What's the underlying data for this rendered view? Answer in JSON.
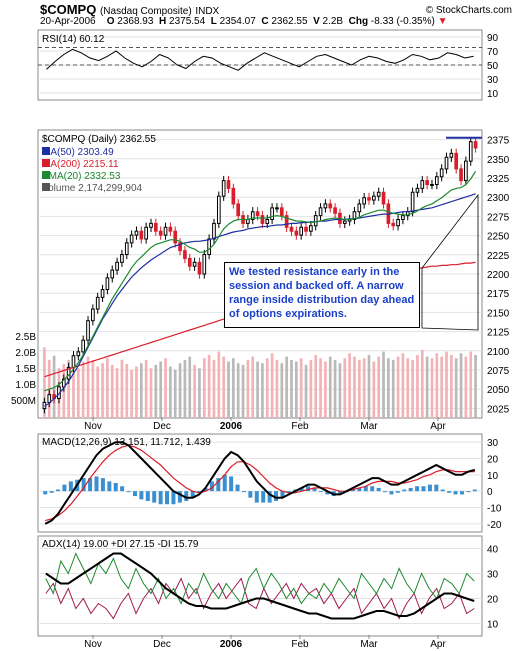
{
  "header": {
    "symbol": "$COMPQ",
    "name": "(Nasdaq Composite)",
    "exchange": "INDX",
    "date": "20-Apr-2006",
    "open_label": "O",
    "open": "2368.93",
    "high_label": "H",
    "high": "2375.54",
    "low_label": "L",
    "low": "2354.07",
    "close_label": "C",
    "close": "2362.55",
    "volume_label": "V",
    "volume": "2.2B",
    "change_label": "Chg",
    "change": "-8.33 (-0.35%)",
    "credit": "© StockCharts.com"
  },
  "annotation": "We tested resistance early in the session and backed off.  A narrow range inside distribution day ahead of options expirations.",
  "colors": {
    "price_up": "#000000",
    "price_down": "#d81e2b",
    "ma50": "#1f2fa3",
    "ma200": "#d81e2b",
    "ema20": "#1c8a2e",
    "volume_up": "#f2b2b6",
    "volume_down": "#b9b9b9",
    "macd_hist": "#3a8fd0",
    "annotation_text": "#1a3fc8",
    "resistance": "#1f2fa3"
  },
  "chart_data": [
    {
      "type": "line",
      "panel": "rsi",
      "title": "RSI(14) 60.12",
      "y_ticks": [
        "90",
        "70",
        "50",
        "30",
        "10"
      ],
      "ylim": [
        10,
        90
      ],
      "series": [
        {
          "name": "RSI(14)",
          "values": [
            45,
            54,
            62,
            68,
            64,
            58,
            55,
            60,
            66,
            58,
            52,
            48,
            54,
            62,
            58,
            50,
            46,
            54,
            60,
            58,
            52,
            48,
            44,
            52,
            58,
            64,
            60,
            56,
            52,
            48,
            54,
            60,
            62,
            58,
            54,
            50,
            56,
            60,
            58,
            54,
            52,
            56,
            62,
            60,
            56,
            58,
            64,
            62,
            58,
            60
          ]
        }
      ]
    },
    {
      "type": "candlestick",
      "panel": "price",
      "title": "$COMPQ (Daily) 2362.55",
      "legend": [
        "MA(50) 2303.49",
        "MA(200) 2215.11",
        "EMA(20) 2332.53",
        "Volume 2,174,299,904"
      ],
      "x_labels": [
        "Nov",
        "Dec",
        "2006",
        "Feb",
        "Mar",
        "Apr"
      ],
      "y_ticks": [
        "2375",
        "2350",
        "2325",
        "2300",
        "2275",
        "2250",
        "2225",
        "2200",
        "2175",
        "2150",
        "2125",
        "2100",
        "2075",
        "2050",
        "2025"
      ],
      "ylim": [
        2015,
        2385
      ],
      "volume_ticks": [
        "2.5B",
        "2.0B",
        "1.5B",
        "1.0B",
        "500M"
      ],
      "close": [
        2035,
        2045,
        2040,
        2055,
        2065,
        2080,
        2095,
        2100,
        2115,
        2140,
        2155,
        2170,
        2180,
        2195,
        2205,
        2215,
        2225,
        2240,
        2250,
        2255,
        2245,
        2260,
        2265,
        2255,
        2250,
        2260,
        2255,
        2240,
        2230,
        2220,
        2210,
        2215,
        2200,
        2225,
        2245,
        2265,
        2300,
        2320,
        2310,
        2290,
        2275,
        2265,
        2270,
        2280,
        2275,
        2265,
        2270,
        2285,
        2285,
        2275,
        2260,
        2255,
        2250,
        2260,
        2255,
        2262,
        2275,
        2285,
        2290,
        2285,
        2278,
        2265,
        2268,
        2270,
        2280,
        2290,
        2298,
        2295,
        2300,
        2305,
        2290,
        2265,
        2262,
        2270,
        2275,
        2280,
        2305,
        2310,
        2320,
        2315,
        2315,
        2325,
        2335,
        2350,
        2355,
        2335,
        2320,
        2345,
        2370,
        2362
      ],
      "ma50": [
        2030,
        2034,
        2040,
        2046,
        2054,
        2062,
        2072,
        2082,
        2094,
        2106,
        2118,
        2130,
        2142,
        2152,
        2162,
        2172,
        2180,
        2188,
        2196,
        2202,
        2208,
        2213,
        2218,
        2222,
        2226,
        2230,
        2234,
        2236,
        2238,
        2240,
        2241,
        2242,
        2242,
        2243,
        2244,
        2246,
        2248,
        2250,
        2252,
        2254,
        2255,
        2256,
        2258,
        2259,
        2260,
        2261,
        2261,
        2262,
        2263,
        2263,
        2264,
        2265,
        2265,
        2266,
        2266,
        2267,
        2267,
        2268,
        2268,
        2269,
        2270,
        2270,
        2270,
        2271,
        2271,
        2272,
        2273,
        2274,
        2275,
        2276,
        2277,
        2277,
        2278,
        2279,
        2280,
        2280,
        2281,
        2282,
        2283,
        2284,
        2285,
        2287,
        2289,
        2291,
        2293,
        2295,
        2297,
        2299,
        2301,
        2303
      ],
      "ma200": [
        2068,
        2070,
        2072,
        2074,
        2076,
        2078,
        2080,
        2082,
        2084,
        2086,
        2088,
        2090,
        2092,
        2094,
        2096,
        2098,
        2100,
        2102,
        2104,
        2106,
        2108,
        2110,
        2112,
        2114,
        2116,
        2118,
        2120,
        2122,
        2124,
        2126,
        2128,
        2130,
        2132,
        2134,
        2136,
        2138,
        2140,
        2142,
        2144,
        2146,
        2148,
        2150,
        2152,
        2154,
        2156,
        2158,
        2160,
        2162,
        2164,
        2166,
        2168,
        2170,
        2172,
        2174,
        2176,
        2178,
        2180,
        2182,
        2184,
        2186,
        2188,
        2190,
        2192,
        2193,
        2194,
        2195,
        2196,
        2197,
        2198,
        2199,
        2200,
        2201,
        2202,
        2203,
        2204,
        2205,
        2206,
        2207,
        2208,
        2209,
        2210,
        2210,
        2211,
        2211,
        2212,
        2212,
        2213,
        2214,
        2214,
        2215
      ],
      "ema20": [
        2050,
        2052,
        2054,
        2058,
        2064,
        2070,
        2078,
        2086,
        2096,
        2108,
        2120,
        2132,
        2144,
        2156,
        2168,
        2178,
        2188,
        2198,
        2208,
        2216,
        2222,
        2228,
        2234,
        2238,
        2240,
        2242,
        2244,
        2244,
        2242,
        2238,
        2234,
        2232,
        2228,
        2228,
        2232,
        2238,
        2248,
        2258,
        2264,
        2268,
        2270,
        2270,
        2270,
        2272,
        2272,
        2272,
        2272,
        2274,
        2275,
        2274,
        2272,
        2270,
        2268,
        2268,
        2267,
        2266,
        2267,
        2268,
        2270,
        2271,
        2272,
        2271,
        2270,
        2270,
        2271,
        2273,
        2276,
        2278,
        2280,
        2282,
        2282,
        2280,
        2278,
        2277,
        2276,
        2276,
        2278,
        2281,
        2285,
        2288,
        2290,
        2294,
        2298,
        2303,
        2308,
        2310,
        2311,
        2315,
        2322,
        2332
      ],
      "volume_pct": [
        0.85,
        0.7,
        0.75,
        0.6,
        0.65,
        0.7,
        0.72,
        0.6,
        0.68,
        0.74,
        0.7,
        0.62,
        0.66,
        0.72,
        0.64,
        0.6,
        0.7,
        0.65,
        0.58,
        0.62,
        0.66,
        0.7,
        0.6,
        0.64,
        0.68,
        0.72,
        0.62,
        0.58,
        0.66,
        0.7,
        0.74,
        0.64,
        0.6,
        0.72,
        0.76,
        0.7,
        0.8,
        0.74,
        0.68,
        0.72,
        0.66,
        0.64,
        0.7,
        0.74,
        0.68,
        0.66,
        0.72,
        0.78,
        0.7,
        0.66,
        0.74,
        0.7,
        0.68,
        0.72,
        0.64,
        0.7,
        0.76,
        0.72,
        0.68,
        0.74,
        0.7,
        0.66,
        0.72,
        0.78,
        0.74,
        0.7,
        0.72,
        0.76,
        0.68,
        0.74,
        0.8,
        0.72,
        0.7,
        0.74,
        0.78,
        0.72,
        0.7,
        0.76,
        0.82,
        0.74,
        0.72,
        0.78,
        0.74,
        0.8,
        0.76,
        0.72,
        0.78,
        0.74,
        0.8,
        0.76
      ],
      "resistance_level": 2375
    },
    {
      "type": "line",
      "panel": "macd",
      "title": "MACD(12,26,9) 13.151, 11.712, 1.439",
      "y_ticks": [
        "30",
        "20",
        "10",
        "0",
        "-10",
        "-20"
      ],
      "ylim": [
        -25,
        35
      ],
      "series": [
        {
          "name": "MACD(12,26,9)",
          "values": [
            -20,
            -18,
            -14,
            -8,
            -2,
            4,
            10,
            16,
            22,
            26,
            28,
            30,
            30,
            28,
            24,
            20,
            16,
            12,
            8,
            4,
            0,
            -2,
            -4,
            -4,
            -2,
            2,
            8,
            14,
            20,
            24,
            22,
            18,
            12,
            6,
            2,
            -2,
            -4,
            -4,
            -2,
            0,
            2,
            4,
            4,
            2,
            0,
            -2,
            -2,
            0,
            2,
            4,
            6,
            8,
            8,
            6,
            4,
            4,
            6,
            8,
            10,
            12,
            14,
            16,
            14,
            12,
            10,
            10,
            12,
            13
          ]
        },
        {
          "name": "Signal",
          "values": [
            -18,
            -17,
            -15,
            -12,
            -8,
            -3,
            2,
            8,
            13,
            18,
            22,
            25,
            27,
            28,
            27,
            25,
            22,
            19,
            16,
            12,
            8,
            5,
            2,
            0,
            -1,
            0,
            2,
            6,
            10,
            15,
            18,
            18,
            16,
            13,
            9,
            5,
            2,
            0,
            -1,
            -1,
            0,
            1,
            2,
            2,
            2,
            1,
            0,
            0,
            1,
            2,
            3,
            5,
            6,
            6,
            6,
            5,
            5,
            6,
            7,
            9,
            10,
            12,
            13,
            13,
            12,
            12,
            12,
            12
          ]
        },
        {
          "name": "Histogram",
          "values": [
            -2,
            -1,
            1,
            4,
            6,
            7,
            8,
            8,
            9,
            8,
            6,
            5,
            3,
            0,
            -3,
            -5,
            -6,
            -7,
            -8,
            -8,
            -8,
            -7,
            -6,
            -4,
            -1,
            2,
            6,
            8,
            10,
            9,
            4,
            0,
            -4,
            -7,
            -7,
            -7,
            -6,
            -4,
            -1,
            1,
            2,
            3,
            2,
            0,
            -2,
            -3,
            -2,
            0,
            1,
            2,
            3,
            3,
            2,
            0,
            -2,
            -1,
            1,
            2,
            3,
            3,
            4,
            4,
            1,
            -1,
            -2,
            -2,
            0,
            1
          ]
        }
      ]
    },
    {
      "type": "line",
      "panel": "adx",
      "title": "ADX(14) 19.00 +DI 27.15 -DI 15.79",
      "x_labels": [
        "Nov",
        "Dec",
        "2006",
        "Feb",
        "Mar",
        "Apr"
      ],
      "y_ticks": [
        "40",
        "30",
        "20",
        "10"
      ],
      "ylim": [
        5,
        45
      ],
      "series": [
        {
          "name": "ADX(14)",
          "values": [
            30,
            28,
            26,
            26,
            28,
            30,
            32,
            34,
            36,
            38,
            38,
            36,
            34,
            32,
            30,
            27,
            24,
            22,
            20,
            18,
            17,
            17,
            16,
            16,
            16,
            17,
            18,
            19,
            20,
            20,
            19,
            18,
            17,
            16,
            15,
            14,
            14,
            13,
            12,
            12,
            12,
            12,
            13,
            14,
            15,
            15,
            14,
            13,
            13,
            14,
            16,
            18,
            20,
            22,
            22,
            21,
            20,
            19
          ]
        },
        {
          "name": "+DI",
          "values": [
            28,
            22,
            35,
            30,
            38,
            32,
            26,
            34,
            30,
            36,
            28,
            24,
            32,
            26,
            22,
            28,
            20,
            24,
            18,
            26,
            22,
            30,
            24,
            20,
            26,
            22,
            18,
            28,
            32,
            24,
            30,
            26,
            20,
            24,
            18,
            22,
            20,
            26,
            22,
            28,
            24,
            20,
            30,
            26,
            22,
            28,
            24,
            32,
            26,
            22,
            30,
            24,
            20,
            28,
            26,
            22,
            30,
            27
          ]
        },
        {
          "name": "-DI",
          "values": [
            22,
            26,
            18,
            24,
            16,
            20,
            14,
            18,
            16,
            12,
            18,
            22,
            14,
            20,
            24,
            18,
            26,
            22,
            28,
            20,
            24,
            16,
            22,
            26,
            20,
            24,
            28,
            18,
            16,
            24,
            18,
            22,
            26,
            20,
            26,
            22,
            24,
            18,
            22,
            16,
            20,
            24,
            14,
            18,
            22,
            16,
            20,
            12,
            18,
            22,
            14,
            20,
            24,
            16,
            18,
            22,
            14,
            16
          ]
        }
      ]
    }
  ]
}
